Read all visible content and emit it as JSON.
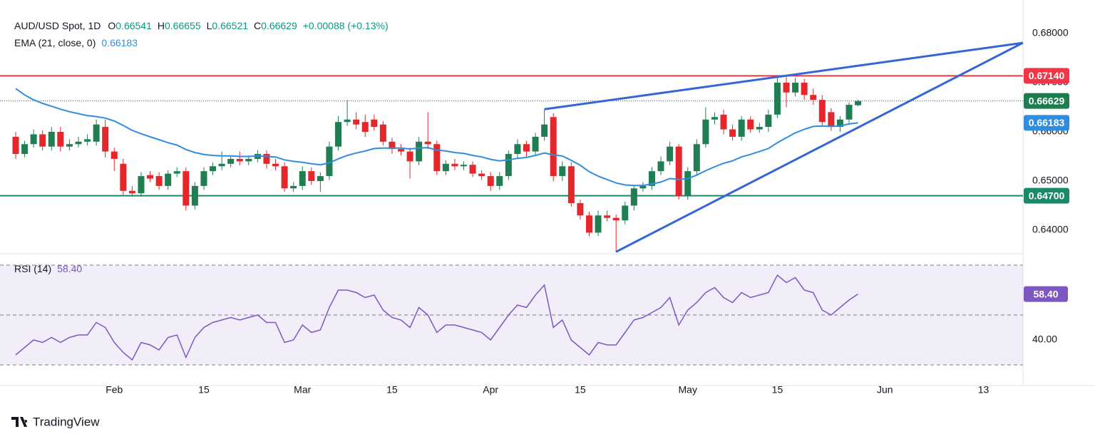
{
  "chart_data": {
    "type": "candlestick",
    "title": "AUD/USD Spot, 1D",
    "ohlc_keys": [
      "O",
      "H",
      "L",
      "C"
    ],
    "change": "+0.00088 (+0.13%)",
    "colors": {
      "up": "#1f7f52",
      "down": "#e5262b",
      "header_value": "#089981",
      "last_price": "#1e7d4e"
    },
    "categories": [
      null,
      null,
      null,
      null,
      null,
      null,
      null,
      null,
      null,
      null,
      null,
      "Feb",
      null,
      null,
      null,
      null,
      null,
      null,
      null,
      null,
      null,
      "15",
      null,
      null,
      null,
      null,
      null,
      null,
      null,
      null,
      null,
      null,
      "Mar",
      null,
      null,
      null,
      null,
      null,
      null,
      null,
      null,
      null,
      "15",
      null,
      null,
      null,
      null,
      null,
      null,
      null,
      null,
      null,
      null,
      "Apr",
      null,
      null,
      null,
      null,
      null,
      null,
      null,
      null,
      null,
      "15",
      null,
      null,
      null,
      null,
      null,
      null,
      null,
      null,
      null,
      null,
      null,
      "May",
      null,
      null,
      null,
      null,
      null,
      null,
      null,
      null,
      null,
      "15",
      null,
      null,
      null,
      null,
      null,
      null,
      null,
      null,
      null,
      null,
      null,
      "Jun",
      null,
      null,
      null,
      null,
      null,
      null,
      null,
      null,
      null,
      null,
      "13",
      null,
      null,
      null,
      null
    ],
    "open": [
      0.659,
      0.6555,
      0.6575,
      0.6595,
      0.657,
      0.66,
      0.657,
      0.6575,
      0.658,
      0.658,
      0.661,
      0.656,
      0.6535,
      0.648,
      0.6475,
      0.6512,
      0.651,
      0.649,
      0.6515,
      0.652,
      0.645,
      0.649,
      0.652,
      0.653,
      0.6535,
      0.6545,
      0.654,
      0.6545,
      0.6555,
      0.6535,
      0.653,
      0.6485,
      0.649,
      0.652,
      0.65,
      0.651,
      0.657,
      0.662,
      0.6625,
      0.662,
      0.6625,
      0.6615,
      0.658,
      0.6565,
      0.656,
      0.654,
      0.658,
      0.6575,
      0.652,
      0.6535,
      0.653,
      0.6533,
      0.6515,
      0.651,
      0.649,
      0.651,
      0.6555,
      0.6575,
      0.656,
      0.659,
      0.663,
      0.651,
      0.653,
      0.6455,
      0.643,
      0.6395,
      0.643,
      0.6425,
      0.642,
      0.645,
      0.6485,
      0.649,
      0.652,
      0.654,
      0.657,
      0.647,
      0.652,
      0.6575,
      0.6625,
      0.6635,
      0.6605,
      0.659,
      0.6625,
      0.6605,
      0.661,
      0.6635,
      0.67,
      0.668,
      0.67,
      0.6675,
      0.6665,
      0.664,
      0.661,
      0.6625,
      0.66541,
      null,
      null,
      null,
      null,
      null,
      null,
      null,
      null,
      null,
      null,
      null,
      null,
      null,
      null,
      null,
      null,
      null,
      null
    ],
    "high": [
      0.66,
      0.6582,
      0.6605,
      0.6603,
      0.661,
      0.661,
      0.6585,
      0.659,
      0.6595,
      0.6625,
      0.6625,
      0.6568,
      0.6545,
      0.649,
      0.6518,
      0.652,
      0.6518,
      0.6522,
      0.6528,
      0.6528,
      0.6498,
      0.6528,
      0.6538,
      0.656,
      0.6552,
      0.656,
      0.6552,
      0.6563,
      0.6562,
      0.6545,
      0.6538,
      0.6498,
      0.653,
      0.6528,
      0.6518,
      0.658,
      0.6632,
      0.6665,
      0.664,
      0.6635,
      0.6635,
      0.6622,
      0.6588,
      0.6575,
      0.6568,
      0.659,
      0.664,
      0.6582,
      0.6542,
      0.6545,
      0.654,
      0.654,
      0.6522,
      0.6518,
      0.6518,
      0.6562,
      0.6585,
      0.6582,
      0.6598,
      0.6645,
      0.6638,
      0.654,
      0.6538,
      0.6462,
      0.6438,
      0.644,
      0.644,
      0.6432,
      0.6458,
      0.6492,
      0.6498,
      0.6528,
      0.655,
      0.658,
      0.6575,
      0.6528,
      0.6585,
      0.665,
      0.664,
      0.6645,
      0.6615,
      0.6632,
      0.6632,
      0.6618,
      0.6645,
      0.671,
      0.6714,
      0.671,
      0.6708,
      0.6688,
      0.6675,
      0.6648,
      0.6632,
      0.666,
      0.66655,
      null,
      null,
      null,
      null,
      null,
      null,
      null,
      null,
      null,
      null,
      null,
      null,
      null,
      null,
      null,
      null,
      null,
      null
    ],
    "low": [
      0.6545,
      0.6548,
      0.6568,
      0.6562,
      0.6562,
      0.656,
      0.6562,
      0.6568,
      0.6572,
      0.6572,
      0.6548,
      0.652,
      0.6472,
      0.6468,
      0.6468,
      0.6498,
      0.6482,
      0.6482,
      0.6508,
      0.644,
      0.6442,
      0.6482,
      0.6512,
      0.6522,
      0.6528,
      0.6532,
      0.6532,
      0.6538,
      0.6525,
      0.6522,
      0.6478,
      0.6478,
      0.6482,
      0.6492,
      0.6478,
      0.6502,
      0.6562,
      0.6612,
      0.6605,
      0.659,
      0.6602,
      0.6572,
      0.6555,
      0.6552,
      0.6505,
      0.6532,
      0.6565,
      0.6512,
      0.6512,
      0.6522,
      0.6522,
      0.6508,
      0.6502,
      0.648,
      0.6482,
      0.6502,
      0.6545,
      0.655,
      0.6552,
      0.6582,
      0.65,
      0.65,
      0.6448,
      0.6422,
      0.6388,
      0.6388,
      0.6418,
      0.6355,
      0.6412,
      0.644,
      0.6478,
      0.6482,
      0.6512,
      0.6532,
      0.6462,
      0.6462,
      0.6512,
      0.6568,
      0.6615,
      0.6595,
      0.6582,
      0.6582,
      0.6598,
      0.6598,
      0.66,
      0.6628,
      0.665,
      0.6672,
      0.6665,
      0.6655,
      0.6612,
      0.6602,
      0.66,
      0.6618,
      0.66521,
      null,
      null,
      null,
      null,
      null,
      null,
      null,
      null,
      null,
      null,
      null,
      null,
      null,
      null,
      null,
      null,
      null,
      null
    ],
    "close": [
      0.6555,
      0.6575,
      0.6595,
      0.657,
      0.66,
      0.657,
      0.6575,
      0.658,
      0.6585,
      0.6615,
      0.656,
      0.6545,
      0.648,
      0.6475,
      0.651,
      0.6505,
      0.649,
      0.6515,
      0.652,
      0.645,
      0.649,
      0.652,
      0.653,
      0.6535,
      0.6545,
      0.654,
      0.6545,
      0.6555,
      0.6535,
      0.653,
      0.6485,
      0.649,
      0.652,
      0.65,
      0.651,
      0.657,
      0.662,
      0.6625,
      0.6615,
      0.66,
      0.661,
      0.658,
      0.6565,
      0.656,
      0.654,
      0.658,
      0.6575,
      0.652,
      0.6535,
      0.653,
      0.6533,
      0.6515,
      0.651,
      0.649,
      0.651,
      0.6555,
      0.6575,
      0.656,
      0.659,
      0.6615,
      0.651,
      0.653,
      0.6455,
      0.643,
      0.6395,
      0.643,
      0.6425,
      0.642,
      0.645,
      0.6485,
      0.649,
      0.652,
      0.654,
      0.657,
      0.647,
      0.652,
      0.6575,
      0.6625,
      0.663,
      0.6605,
      0.659,
      0.6625,
      0.6605,
      0.661,
      0.6635,
      0.67,
      0.668,
      0.67,
      0.6675,
      0.6665,
      0.662,
      0.661,
      0.6625,
      0.6655,
      0.66629,
      null,
      null,
      null,
      null,
      null,
      null,
      null,
      null,
      null,
      null,
      null,
      null,
      null,
      null,
      null,
      null,
      null,
      null
    ],
    "ema": {
      "name": "EMA (21, close, 0)",
      "color": "#2f8ddf",
      "values": [
        0.6688,
        0.6675,
        0.6665,
        0.6658,
        0.6652,
        0.6646,
        0.6641,
        0.6637,
        0.6633,
        0.6631,
        0.6628,
        0.6622,
        0.6613,
        0.6603,
        0.6596,
        0.659,
        0.6584,
        0.6578,
        0.6573,
        0.6564,
        0.6558,
        0.6554,
        0.6552,
        0.6551,
        0.6551,
        0.655,
        0.655,
        0.6551,
        0.655,
        0.6549,
        0.6543,
        0.654,
        0.6538,
        0.6535,
        0.6533,
        0.6537,
        0.6545,
        0.6552,
        0.6557,
        0.6561,
        0.6566,
        0.6567,
        0.6567,
        0.6567,
        0.6565,
        0.6567,
        0.6568,
        0.6563,
        0.6561,
        0.6558,
        0.6556,
        0.6552,
        0.6549,
        0.6544,
        0.6541,
        0.6543,
        0.6546,
        0.6548,
        0.6552,
        0.6557,
        0.6553,
        0.6551,
        0.6542,
        0.6532,
        0.6519,
        0.651,
        0.6503,
        0.6496,
        0.6492,
        0.6491,
        0.6491,
        0.6494,
        0.6498,
        0.6505,
        0.6503,
        0.6505,
        0.6512,
        0.6521,
        0.6529,
        0.6536,
        0.6541,
        0.6549,
        0.6554,
        0.656,
        0.6566,
        0.6578,
        0.6588,
        0.6598,
        0.6605,
        0.6611,
        0.6612,
        0.6611,
        0.6612,
        0.6616,
        0.66183,
        null,
        null,
        null,
        null,
        null,
        null,
        null,
        null,
        null,
        null,
        null,
        null,
        null,
        null,
        null,
        null,
        null,
        null
      ]
    },
    "levels": [
      {
        "value": 0.6714,
        "label": "0.67140",
        "color": "#f23645"
      },
      {
        "value": 0.647,
        "label": "0.64700",
        "color": "#1b8a68"
      }
    ],
    "trendlines": [
      {
        "x": [
          59,
          112.4
        ],
        "y": [
          0.6646,
          0.6781
        ],
        "color": "#3466d8"
      },
      {
        "x": [
          67,
          112.4
        ],
        "y": [
          0.6356,
          0.6781
        ],
        "color": "#3466d8"
      }
    ],
    "ylim": [
      0.63536,
      0.68681
    ],
    "yticks": [
      {
        "value": 0.64,
        "label": "0.64000"
      },
      {
        "value": 0.65,
        "label": "0.65000"
      },
      {
        "value": 0.66,
        "label": "0.66000"
      },
      {
        "value": 0.67,
        "label": "0.67000"
      },
      {
        "value": 0.68,
        "label": "0.68000"
      }
    ],
    "grid": false,
    "rsi": {
      "type": "line",
      "name": "RSI (14)",
      "color": "#7e57c2",
      "last_label": "58.40",
      "values": [
        34,
        37,
        40,
        39,
        41,
        39,
        41,
        42,
        42,
        47,
        45,
        39,
        35,
        32,
        39,
        38,
        36,
        41,
        42,
        33,
        41,
        45,
        47,
        48,
        49,
        48,
        49,
        50,
        47,
        47,
        39,
        40,
        46,
        43,
        44,
        53,
        60,
        60,
        59,
        57,
        58,
        52,
        49,
        48,
        45,
        53,
        50,
        43,
        46,
        46,
        45,
        44,
        43,
        40,
        45,
        50,
        54,
        53,
        58,
        62,
        45,
        48,
        40,
        37,
        34,
        39,
        38,
        38,
        43,
        48,
        49,
        51,
        53,
        57,
        46,
        52,
        55,
        59,
        61,
        57,
        55,
        59,
        57,
        58,
        59,
        66,
        63,
        65,
        60,
        59,
        52,
        50,
        53,
        56,
        58.4,
        null,
        null,
        null,
        null,
        null,
        null,
        null,
        null,
        null,
        null,
        null,
        null,
        null,
        null,
        null,
        null,
        null,
        null
      ],
      "ylim": [
        22,
        74
      ],
      "yticks": [
        {
          "value": 40,
          "label": "40.00"
        }
      ],
      "bands": [
        70,
        50,
        30
      ]
    }
  },
  "brand": "TradingView"
}
